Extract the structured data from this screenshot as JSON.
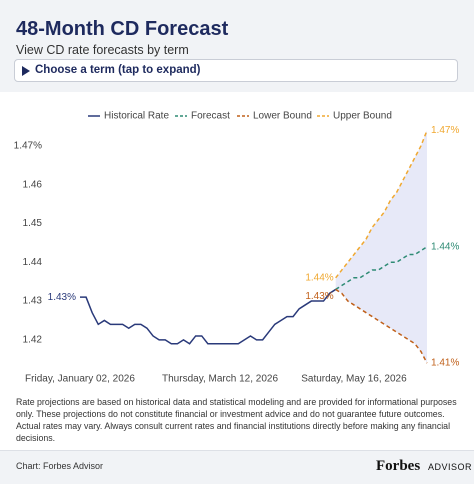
{
  "chart_data": {
    "type": "line",
    "title": "48-Month CD Forecast",
    "subtitle": "View CD rate forecasts by term",
    "categories": [
      "Friday, January 02, 2026",
      null,
      null,
      null,
      null,
      null,
      null,
      null,
      null,
      null,
      null,
      null,
      null,
      null,
      null,
      null,
      null,
      null,
      null,
      null,
      null,
      null,
      null,
      "Thursday, March 12, 2026",
      null,
      null,
      null,
      null,
      null,
      null,
      null,
      null,
      null,
      null,
      null,
      null,
      null,
      null,
      null,
      null,
      null,
      null,
      null,
      null,
      null,
      "Saturday, May 16, 2026",
      null,
      null,
      null,
      null,
      null,
      null,
      null,
      null,
      null,
      null,
      null,
      null
    ],
    "ylim": [
      1.41,
      1.475
    ],
    "yticks": [
      1.42,
      1.43,
      1.44,
      1.45,
      1.46,
      {
        "value": 1.47,
        "label": "1.47%"
      }
    ],
    "grid": false,
    "band": {
      "upper": 3,
      "lower": 2,
      "color": "#e7e9f8"
    },
    "series": [
      {
        "name": "Historical Rate",
        "color": "#2a3a7a",
        "style": "solid",
        "values": [
          1.431,
          1.431,
          1.427,
          1.424,
          1.425,
          1.424,
          1.424,
          1.424,
          1.423,
          1.424,
          1.424,
          1.423,
          1.421,
          1.42,
          1.42,
          1.419,
          1.419,
          1.42,
          1.419,
          1.421,
          1.421,
          1.419,
          1.419,
          1.419,
          1.419,
          1.419,
          1.419,
          1.42,
          1.421,
          1.42,
          1.42,
          1.422,
          1.424,
          1.425,
          1.426,
          1.426,
          1.428,
          1.429,
          1.43,
          1.43,
          1.43,
          1.432,
          1.433,
          null,
          null,
          null,
          null,
          null,
          null,
          null,
          null,
          null,
          null,
          null,
          null,
          null,
          null,
          null
        ],
        "value_labels": [
          "1.43%",
          null,
          null,
          null,
          null,
          null,
          null,
          null,
          null,
          null,
          null,
          null,
          null,
          null,
          null,
          null,
          null,
          null,
          null,
          null,
          null,
          null,
          null,
          null,
          null,
          null,
          null,
          null,
          null,
          null,
          null,
          null,
          null,
          null,
          null,
          null,
          null,
          null,
          null,
          null,
          null,
          null,
          null,
          null,
          null,
          null,
          null,
          null,
          null,
          null,
          null,
          null,
          null,
          null,
          null,
          null,
          null,
          null
        ]
      },
      {
        "name": "Forecast",
        "color": "#2e8b74",
        "style": "dashed",
        "values": [
          null,
          null,
          null,
          null,
          null,
          null,
          null,
          null,
          null,
          null,
          null,
          null,
          null,
          null,
          null,
          null,
          null,
          null,
          null,
          null,
          null,
          null,
          null,
          null,
          null,
          null,
          null,
          null,
          null,
          null,
          null,
          null,
          null,
          null,
          null,
          null,
          null,
          null,
          null,
          null,
          null,
          null,
          1.433,
          1.434,
          1.435,
          1.436,
          1.436,
          1.437,
          1.438,
          1.438,
          1.439,
          1.44,
          1.44,
          1.441,
          1.442,
          1.442,
          1.443,
          1.444
        ],
        "value_labels": [
          null,
          null,
          null,
          null,
          null,
          null,
          null,
          null,
          null,
          null,
          null,
          null,
          null,
          null,
          null,
          null,
          null,
          null,
          null,
          null,
          null,
          null,
          null,
          null,
          null,
          null,
          null,
          null,
          null,
          null,
          null,
          null,
          null,
          null,
          null,
          null,
          null,
          null,
          null,
          null,
          null,
          null,
          null,
          null,
          null,
          null,
          null,
          null,
          null,
          null,
          null,
          null,
          null,
          null,
          null,
          null,
          null,
          "1.44%"
        ]
      },
      {
        "name": "Lower Bound",
        "color": "#c0601a",
        "style": "dashed",
        "values": [
          null,
          null,
          null,
          null,
          null,
          null,
          null,
          null,
          null,
          null,
          null,
          null,
          null,
          null,
          null,
          null,
          null,
          null,
          null,
          null,
          null,
          null,
          null,
          null,
          null,
          null,
          null,
          null,
          null,
          null,
          null,
          null,
          null,
          null,
          null,
          null,
          null,
          null,
          null,
          null,
          null,
          null,
          1.433,
          1.432,
          1.43,
          1.429,
          1.428,
          1.427,
          1.426,
          1.425,
          1.424,
          1.423,
          1.422,
          1.421,
          1.42,
          1.419,
          1.417,
          1.414
        ],
        "value_labels": [
          null,
          null,
          null,
          null,
          null,
          null,
          null,
          null,
          null,
          null,
          null,
          null,
          null,
          null,
          null,
          null,
          null,
          null,
          null,
          null,
          null,
          null,
          null,
          null,
          null,
          null,
          null,
          null,
          null,
          null,
          null,
          null,
          null,
          null,
          null,
          null,
          null,
          null,
          null,
          null,
          null,
          null,
          "1.43%",
          null,
          null,
          null,
          null,
          null,
          null,
          null,
          null,
          null,
          null,
          null,
          null,
          null,
          null,
          "1.41%"
        ]
      },
      {
        "name": "Upper Bound",
        "color": "#f0a830",
        "style": "dashed",
        "values": [
          null,
          null,
          null,
          null,
          null,
          null,
          null,
          null,
          null,
          null,
          null,
          null,
          null,
          null,
          null,
          null,
          null,
          null,
          null,
          null,
          null,
          null,
          null,
          null,
          null,
          null,
          null,
          null,
          null,
          null,
          null,
          null,
          null,
          null,
          null,
          null,
          null,
          null,
          null,
          null,
          null,
          null,
          1.436,
          1.438,
          1.44,
          1.442,
          1.444,
          1.446,
          1.449,
          1.451,
          1.453,
          1.456,
          1.458,
          1.461,
          1.464,
          1.467,
          1.47,
          1.474
        ],
        "value_labels": [
          null,
          null,
          null,
          null,
          null,
          null,
          null,
          null,
          null,
          null,
          null,
          null,
          null,
          null,
          null,
          null,
          null,
          null,
          null,
          null,
          null,
          null,
          null,
          null,
          null,
          null,
          null,
          null,
          null,
          null,
          null,
          null,
          null,
          null,
          null,
          null,
          null,
          null,
          null,
          null,
          null,
          null,
          "1.44%",
          null,
          null,
          null,
          null,
          null,
          null,
          null,
          null,
          null,
          null,
          null,
          null,
          null,
          null,
          "1.47%"
        ]
      }
    ]
  },
  "controls": {
    "term_selector": "Choose a term (tap to expand)"
  },
  "footnote": "Rate projections are based on historical data and statistical modeling and are provided for informational purposes only. These projections do not constitute financial or investment advice and do not guarantee future outcomes. Actual rates may vary. Always consult current rates and financial institutions directly before making any financial decisions.",
  "footer": {
    "source": "Chart: Forbes Advisor",
    "brand": "Forbes",
    "brand_sub": "ADVISOR"
  }
}
